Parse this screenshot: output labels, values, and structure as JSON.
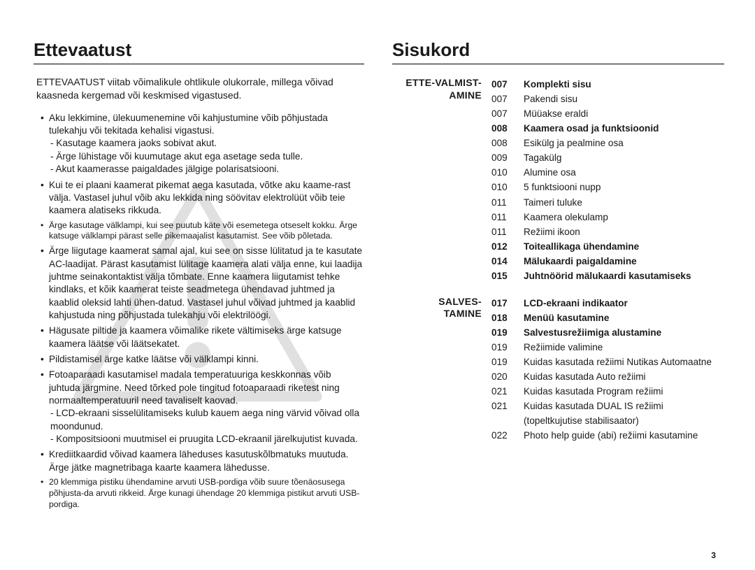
{
  "left": {
    "title": "Ettevaatust",
    "intro": "ETTEVAATUST viitab võimalikule ohtlikule olukorrale, millega võivad kaasneda kergemad või keskmised vigastused.",
    "items": [
      {
        "text": "Aku lekkimine, ülekuumenemine või kahjustumine võib põhjustada tulekahju või tekitada kehalisi vigastusi.",
        "subs": [
          "- Kasutage kaamera jaoks sobivat akut.",
          "- Ärge lühistage või kuumutage akut ega asetage seda tulle.",
          "- Akut kaamerasse paigaldades jälgige polarisatsiooni."
        ]
      },
      {
        "text": "Kui te ei plaani kaamerat pikemat aega kasutada, võtke aku kaame-rast välja. Vastasel juhul võib aku lekkida ning söövitav elektrolüüt võib teie kaamera alatiseks rikkuda."
      },
      {
        "text": "Ärge kasutage välklampi, kui see puutub käte või esemetega otseselt kokku. Ärge katsuge välklampi pärast selle pikemaajalist kasutamist. See võib põletada.",
        "small": true
      },
      {
        "text": "Ärge liigutage kaamerat samal ajal, kui see on sisse lülitatud ja te kasutate AC-laadijat. Pärast kasutamist lülitage kaamera alati välja enne, kui laadija juhtme seinakontaktist välja tõmbate. Enne kaamera liigutamist tehke kindlaks, et kõik kaamerat teiste seadmetega ühendavad juhtmed ja kaablid oleksid lahti ühen-datud. Vastasel juhul võivad juhtmed ja kaablid kahjustuda ning põhjustada tulekahju või elektrilöögi."
      },
      {
        "text": "Hägusate piltide ja kaamera võimalike rikete vältimiseks ärge katsuge kaamera läätse või läätsekatet."
      },
      {
        "text": "Pildistamisel ärge katke läätse või välklampi kinni."
      },
      {
        "text": "Fotoaparaadi kasutamisel madala temperatuuriga keskkonnas võib juhtuda järgmine. Need tõrked pole tingitud fotoaparaadi riketest ning normaaltemperatuuril need tavaliselt kaovad.",
        "subs": [
          "- LCD-ekraani sisselülitamiseks kulub kauem aega ning värvid võivad olla moondunud.",
          "- Kompositsiooni muutmisel ei pruugita LCD-ekraanil järelkujutist kuvada."
        ]
      },
      {
        "text": "Krediitkaardid võivad kaamera läheduses kasutuskõlbmatuks muutuda. Ärge jätke magnetribaga kaarte kaamera lähedusse."
      },
      {
        "text": "20 klemmiga pistiku ühendamine arvuti USB-pordiga võib suure tõenäosusega põhjusta-da arvuti rikkeid. Ärge kunagi ühendage 20 klemmiga pistikut arvuti USB-pordiga.",
        "small": true
      }
    ]
  },
  "right": {
    "title": "Sisukord",
    "sections": [
      {
        "label": "ETTE-VALMIST-AMINE",
        "rows": [
          {
            "page": "007",
            "title": "Komplekti sisu",
            "bold": true
          },
          {
            "page": "007",
            "title": "Pakendi sisu"
          },
          {
            "page": "007",
            "title": "Müüakse eraldi"
          },
          {
            "page": "008",
            "title": "Kaamera osad ja funktsioonid",
            "bold": true
          },
          {
            "page": "008",
            "title": "Esikülg ja pealmine osa"
          },
          {
            "page": "009",
            "title": "Tagakülg"
          },
          {
            "page": "010",
            "title": "Alumine osa"
          },
          {
            "page": "010",
            "title": "5 funktsiooni nupp"
          },
          {
            "page": "011",
            "title": "Taimeri tuluke"
          },
          {
            "page": "011",
            "title": "Kaamera olekulamp"
          },
          {
            "page": "011",
            "title": "Režiimi ikoon"
          },
          {
            "page": "012",
            "title": "Toiteallikaga ühendamine",
            "bold": true
          },
          {
            "page": "014",
            "title": "Mälukaardi paigaldamine",
            "bold": true
          },
          {
            "page": "015",
            "title": "Juhtnöörid mälukaardi kasutamiseks",
            "bold": true
          }
        ]
      },
      {
        "label": "SALVES-TAMINE",
        "rows": [
          {
            "page": "017",
            "title": "LCD-ekraani indikaator",
            "bold": true
          },
          {
            "page": "018",
            "title": "Menüü kasutamine",
            "bold": true
          },
          {
            "page": "019",
            "title": "Salvestusrežiimiga alustamine",
            "bold": true
          },
          {
            "page": "019",
            "title": "Režiimide valimine"
          },
          {
            "page": "019",
            "title": "Kuidas kasutada režiimi Nutikas Automaatne"
          },
          {
            "page": "020",
            "title": "Kuidas kasutada Auto režiimi"
          },
          {
            "page": "021",
            "title": "Kuidas kasutada Program režiimi"
          },
          {
            "page": "021",
            "title": "Kuidas kasutada DUAL IS režiimi (topeltkujutise stabilisaator)"
          },
          {
            "page": "022",
            "title": "Photo help guide (abi) režiimi kasutamine"
          }
        ]
      }
    ]
  },
  "pagenum": "3"
}
